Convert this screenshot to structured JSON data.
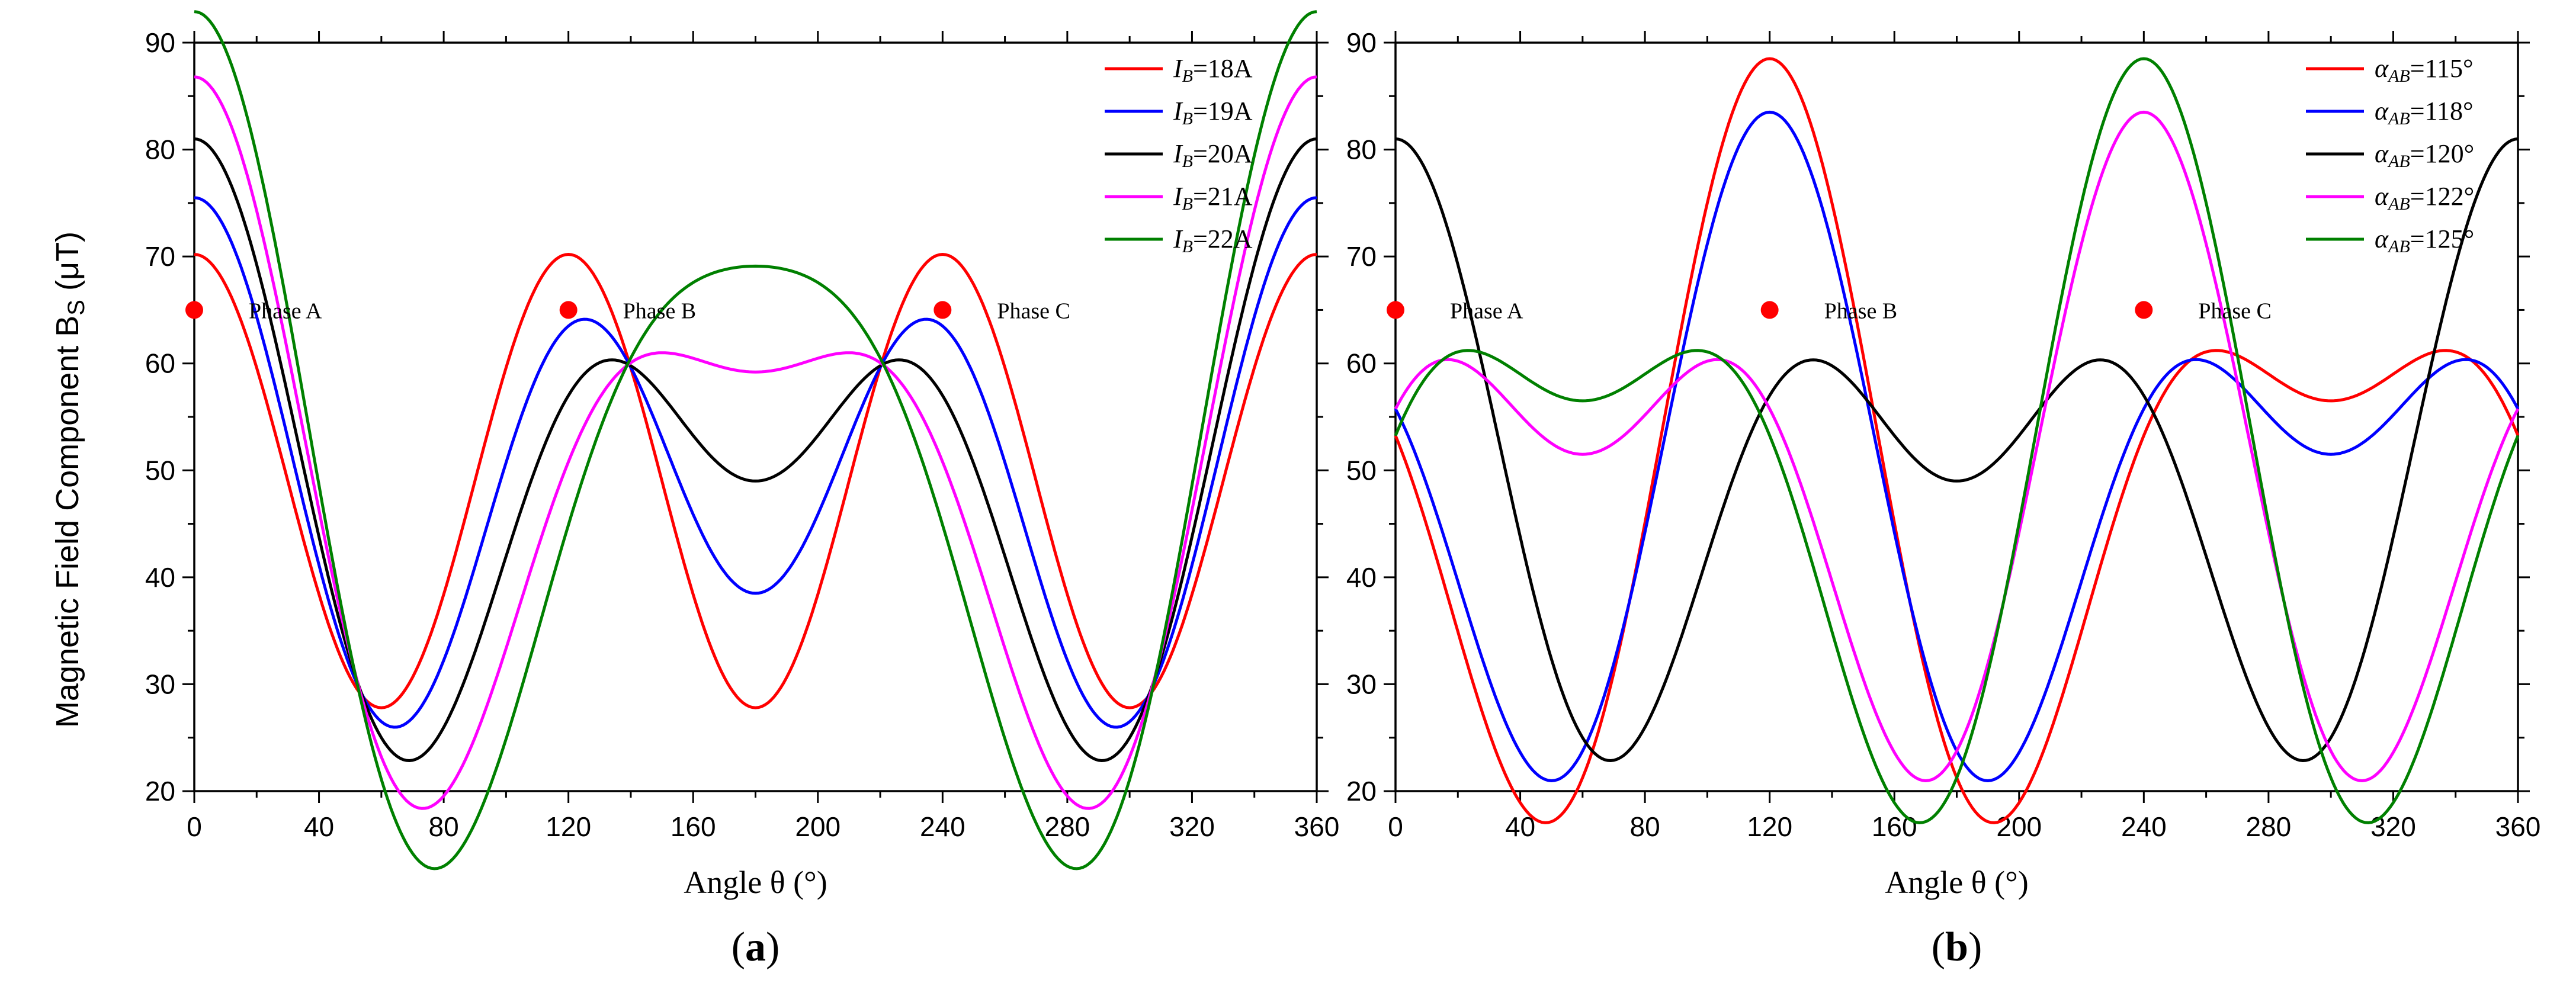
{
  "ylabel_main": "Magnetic Field Component B",
  "ylabel_sub": "S",
  "ylabel_unit": " (μT)",
  "chart_data": [
    {
      "type": "line",
      "panel_label": "a",
      "xlabel": "Angle θ (°)",
      "xlim": [
        0,
        360
      ],
      "ylim": [
        20,
        90
      ],
      "xticks": [
        0,
        40,
        80,
        120,
        160,
        200,
        240,
        280,
        320,
        360
      ],
      "yticks": [
        20,
        30,
        40,
        50,
        60,
        70,
        80,
        90
      ],
      "legend_position": "top-right",
      "legend_symbol": "I",
      "legend_subscript": "B",
      "series": [
        {
          "name": "18A",
          "label": "=18A",
          "color": "#ff0000",
          "offset": 49,
          "amp_phase0": 21.2,
          "amp_double": 0,
          "phi_double": 0
        },
        {
          "name": "19A",
          "label": "=19A",
          "color": "#0000ff",
          "offset": 49,
          "amp_phase0": 18.5,
          "amp_double": 8.0,
          "phi_double": 0
        },
        {
          "name": "20A",
          "label": "=20A",
          "color": "#000000",
          "offset": 49,
          "amp_phase0": 16.0,
          "amp_double": 16.0,
          "phi_double": 0
        },
        {
          "name": "21A",
          "label": "=21A",
          "color": "#ff00ff",
          "offset": 49,
          "amp_phase0": 13.8,
          "amp_double": 24.0,
          "phi_double": 0
        },
        {
          "name": "22A",
          "label": "=22A",
          "color": "#008000",
          "offset": 49,
          "amp_phase0": 11.9,
          "amp_double": 32.0,
          "phi_double": 0
        }
      ],
      "markers": [
        {
          "x": 0,
          "y": 65,
          "label": "Phase A"
        },
        {
          "x": 120,
          "y": 65,
          "label": "Phase B"
        },
        {
          "x": 240,
          "y": 65,
          "label": "Phase C"
        }
      ]
    },
    {
      "type": "line",
      "panel_label": "b",
      "xlabel": "Angle θ (°)",
      "xlim": [
        0,
        360
      ],
      "ylim": [
        20,
        90
      ],
      "xticks": [
        0,
        40,
        80,
        120,
        160,
        200,
        240,
        280,
        320,
        360
      ],
      "yticks": [
        20,
        30,
        40,
        50,
        60,
        70,
        80,
        90
      ],
      "legend_position": "top-right",
      "legend_symbol": "α",
      "legend_subscript": "AB",
      "series": [
        {
          "name": "115°",
          "label": "=115°",
          "color": "#ff0000",
          "offset": 49,
          "amp_phase0": 16.0,
          "amp_double": 23.5,
          "phi_double": 120
        },
        {
          "name": "118°",
          "label": "=118°",
          "color": "#0000ff",
          "offset": 49,
          "amp_phase0": 16.0,
          "amp_double": 18.5,
          "phi_double": 120
        },
        {
          "name": "120°",
          "label": "=120°",
          "color": "#000000",
          "offset": 49,
          "amp_phase0": 16.0,
          "amp_double": 16.0,
          "phi_double": 0
        },
        {
          "name": "122°",
          "label": "=122°",
          "color": "#ff00ff",
          "offset": 49,
          "amp_phase0": 16.0,
          "amp_double": 18.5,
          "phi_double": -120
        },
        {
          "name": "125°",
          "label": "=125°",
          "color": "#008000",
          "offset": 49,
          "amp_phase0": 16.0,
          "amp_double": 23.5,
          "phi_double": -120
        }
      ],
      "markers": [
        {
          "x": 0,
          "y": 65,
          "label": "Phase A"
        },
        {
          "x": 120,
          "y": 65,
          "label": "Phase B"
        },
        {
          "x": 240,
          "y": 65,
          "label": "Phase C"
        }
      ]
    }
  ]
}
